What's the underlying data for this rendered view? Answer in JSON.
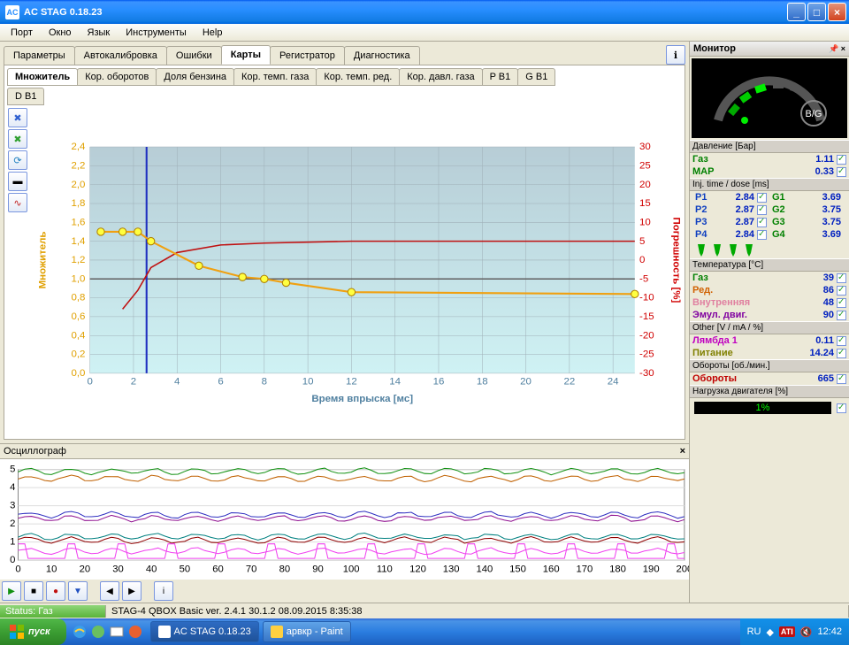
{
  "window": {
    "title": "AC STAG 0.18.23"
  },
  "menu": [
    "Порт",
    "Окно",
    "Язык",
    "Инструменты",
    "Help"
  ],
  "tabs": {
    "items": [
      "Параметры",
      "Автокалибровка",
      "Ошибки",
      "Карты",
      "Регистратор",
      "Диагностика"
    ],
    "active": 3
  },
  "subtabs": {
    "row1": [
      "Множитель",
      "Кор. оборотов",
      "Доля бензина",
      "Кор. темп. газа",
      "Кор. темп. ред.",
      "Кор. давл. газа",
      "P B1",
      "G B1"
    ],
    "row2": [
      "D B1"
    ],
    "active": 0
  },
  "chart": {
    "type": "line",
    "xlabel": "Время впрыска [мс]",
    "ylabel_left": "Множитель",
    "ylabel_right": "Погрешность [%]",
    "x_ticks": [
      0,
      2,
      4,
      6,
      8,
      10,
      12,
      14,
      16,
      18,
      20,
      22,
      24
    ],
    "y_left_ticks": [
      0,
      0.2,
      0.4,
      0.6,
      0.8,
      1,
      1.2,
      1.4,
      1.6,
      1.8,
      2,
      2.2,
      2.4
    ],
    "y_right_ticks": [
      -30,
      -25,
      -20,
      -15,
      -10,
      -5,
      0,
      5,
      10,
      15,
      20,
      25,
      30
    ],
    "xlim": [
      0,
      25
    ],
    "ylim_left": [
      0,
      2.4
    ],
    "ylim_right": [
      -30,
      30
    ],
    "bg_top": "#b7cdd6",
    "bg_bottom": "#cff2f4",
    "grid_color": "#a0b0b8",
    "axis_color": "#5080a0",
    "left_axis_color": "#e0a000",
    "right_axis_color": "#d00000",
    "series": {
      "orange": {
        "color": "#f0a010",
        "marker": "#ffff40",
        "marker_stroke": "#b08000",
        "points": [
          [
            0.5,
            1.5
          ],
          [
            1.5,
            1.5
          ],
          [
            2.2,
            1.5
          ],
          [
            2.8,
            1.4
          ],
          [
            5,
            1.14
          ],
          [
            7,
            1.02
          ],
          [
            8,
            1.0
          ],
          [
            9,
            0.96
          ],
          [
            12,
            0.86
          ],
          [
            25,
            0.84
          ]
        ]
      },
      "red": {
        "color": "#c01010",
        "points": [
          [
            1.5,
            -13
          ],
          [
            2.2,
            -8
          ],
          [
            2.8,
            -2
          ],
          [
            4,
            2
          ],
          [
            6,
            4
          ],
          [
            8,
            4.5
          ],
          [
            12,
            5
          ],
          [
            25,
            5
          ]
        ],
        "yaxis": "right"
      }
    },
    "cursor_x": 2.6,
    "cursor_color": "#2030c0"
  },
  "oscillo": {
    "title": "Осциллограф",
    "y_ticks": [
      0,
      1,
      2,
      3,
      4,
      5
    ],
    "x_ticks": [
      0,
      10,
      20,
      30,
      40,
      50,
      60,
      70,
      80,
      90,
      100,
      110,
      120,
      130,
      140,
      150,
      160,
      170,
      180,
      190,
      200
    ],
    "lines": [
      {
        "color": "#109010",
        "y": 4.9
      },
      {
        "color": "#c06000",
        "y": 4.5
      },
      {
        "color": "#3030c0",
        "y": 2.5
      },
      {
        "color": "#901090",
        "y": 2.3
      },
      {
        "color": "#008080",
        "y": 1.3
      },
      {
        "color": "#900000",
        "y": 1.1
      },
      {
        "color": "#f040f0",
        "y": 0.5
      }
    ]
  },
  "monitor": {
    "title": "Монитор",
    "bg_label": "B/G",
    "pressure": {
      "heading": "Давление [Бар]",
      "rows": [
        {
          "label": "Газ",
          "value": "1.11",
          "color": "#008000"
        },
        {
          "label": "MAP",
          "value": "0.33",
          "color": "#008000"
        }
      ]
    },
    "inj": {
      "heading": "Inj. time / dose [ms]",
      "rows": [
        {
          "p": "P1",
          "pv": "2.84",
          "g": "G1",
          "gv": "3.69"
        },
        {
          "p": "P2",
          "pv": "2.87",
          "g": "G2",
          "gv": "3.75"
        },
        {
          "p": "P3",
          "pv": "2.87",
          "g": "G3",
          "gv": "3.75"
        },
        {
          "p": "P4",
          "pv": "2.84",
          "g": "G4",
          "gv": "3.69"
        }
      ],
      "pcolor": "#1040c0",
      "gcolor": "#008000"
    },
    "temp": {
      "heading": "Температура [°C]",
      "rows": [
        {
          "label": "Газ",
          "value": "39",
          "color": "#008000"
        },
        {
          "label": "Ред.",
          "value": "86",
          "color": "#d06000"
        },
        {
          "label": "Внутренняя",
          "value": "48",
          "color": "#e080a0"
        },
        {
          "label": "Эмул. двиг.",
          "value": "90",
          "color": "#8000a0"
        }
      ]
    },
    "other": {
      "heading": "Other [V / mA / %]",
      "rows": [
        {
          "label": "Лямбда 1",
          "value": "0.11",
          "color": "#c000c0"
        },
        {
          "label": "Питание",
          "value": "14.24",
          "color": "#808000"
        }
      ]
    },
    "rpm": {
      "heading": "Обороты [об./мин.]",
      "label": "Обороты",
      "value": "665",
      "color": "#c00000"
    },
    "load": {
      "heading": "Нагрузка двигателя [%]",
      "value": "1%"
    }
  },
  "status": {
    "left": "Status: Газ",
    "right": "STAG-4 QBOX Basic  ver.  2.4.1   30.1.2   08.09.2015 8:35:38"
  },
  "taskbar": {
    "start": "пуск",
    "items": [
      {
        "label": "AC STAG 0.18.23",
        "active": true
      },
      {
        "label": "арвкр - Paint",
        "active": false
      }
    ],
    "tray": {
      "lang": "RU",
      "time": "12:42"
    }
  }
}
